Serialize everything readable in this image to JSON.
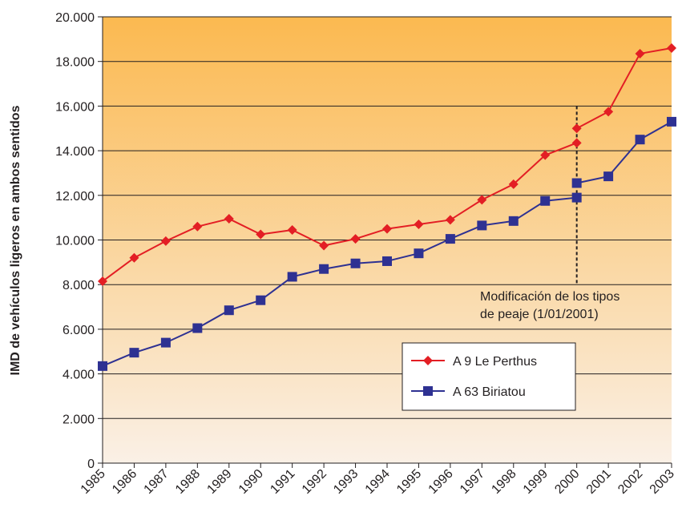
{
  "chart_data": {
    "type": "line",
    "xlabel": "",
    "ylabel": "IMD de vehículos ligeros en ambos sentidos",
    "ylim": [
      0,
      20000
    ],
    "y_ticks": [
      0,
      2000,
      4000,
      6000,
      8000,
      10000,
      12000,
      14000,
      16000,
      18000,
      20000
    ],
    "y_tick_labels": [
      "0",
      "2.000",
      "4.000",
      "6.000",
      "8.000",
      "10.000",
      "12.000",
      "14.000",
      "16.000",
      "18.000",
      "20.000"
    ],
    "categories": [
      "1985",
      "1986",
      "1987",
      "1988",
      "1989",
      "1990",
      "1991",
      "1992",
      "1993",
      "1994",
      "1995",
      "1996",
      "1997",
      "1998",
      "1999",
      "2000",
      "2001",
      "2002",
      "2003"
    ],
    "grid": "horizontal",
    "legend_position": "bottom-right",
    "series": [
      {
        "name": "A 9 Le Perthus",
        "color": "#e31e24",
        "marker": "diamond",
        "points": [
          {
            "x": 0,
            "y": 8150
          },
          {
            "x": 1,
            "y": 9200
          },
          {
            "x": 2,
            "y": 9950
          },
          {
            "x": 3,
            "y": 10600
          },
          {
            "x": 4,
            "y": 10950
          },
          {
            "x": 5,
            "y": 10250
          },
          {
            "x": 6,
            "y": 10450
          },
          {
            "x": 7,
            "y": 9750
          },
          {
            "x": 8,
            "y": 10050
          },
          {
            "x": 9,
            "y": 10500
          },
          {
            "x": 10,
            "y": 10700
          },
          {
            "x": 11,
            "y": 10900
          },
          {
            "x": 12,
            "y": 11800
          },
          {
            "x": 13,
            "y": 12500
          },
          {
            "x": 14,
            "y": 13800
          },
          {
            "x": 15,
            "y": 14350
          },
          {
            "x": 15,
            "y": 15000
          },
          {
            "x": 16,
            "y": 15750
          },
          {
            "x": 17,
            "y": 18350
          },
          {
            "x": 18,
            "y": 18600
          }
        ]
      },
      {
        "name": "A 63 Biriatou",
        "color": "#2e3192",
        "marker": "square",
        "points": [
          {
            "x": 0,
            "y": 4350
          },
          {
            "x": 1,
            "y": 4950
          },
          {
            "x": 2,
            "y": 5400
          },
          {
            "x": 3,
            "y": 6050
          },
          {
            "x": 4,
            "y": 6850
          },
          {
            "x": 5,
            "y": 7300
          },
          {
            "x": 6,
            "y": 8350
          },
          {
            "x": 7,
            "y": 8700
          },
          {
            "x": 8,
            "y": 8950
          },
          {
            "x": 9,
            "y": 9050
          },
          {
            "x": 10,
            "y": 9400
          },
          {
            "x": 11,
            "y": 10050
          },
          {
            "x": 12,
            "y": 10650
          },
          {
            "x": 13,
            "y": 10850
          },
          {
            "x": 14,
            "y": 11750
          },
          {
            "x": 15,
            "y": 11900
          },
          {
            "x": 15,
            "y": 12550
          },
          {
            "x": 16,
            "y": 12850
          },
          {
            "x": 17,
            "y": 14500
          },
          {
            "x": 18,
            "y": 15300
          }
        ]
      }
    ],
    "annotation": {
      "line1": "Modificación de los tipos",
      "line2": "de peaje (1/01/2001)",
      "x": 15,
      "y_range": [
        8000,
        16000
      ]
    },
    "colors": {
      "background_top": "#fbb950",
      "background_bottom": "#faf0e6",
      "grid": "#231f20"
    }
  }
}
